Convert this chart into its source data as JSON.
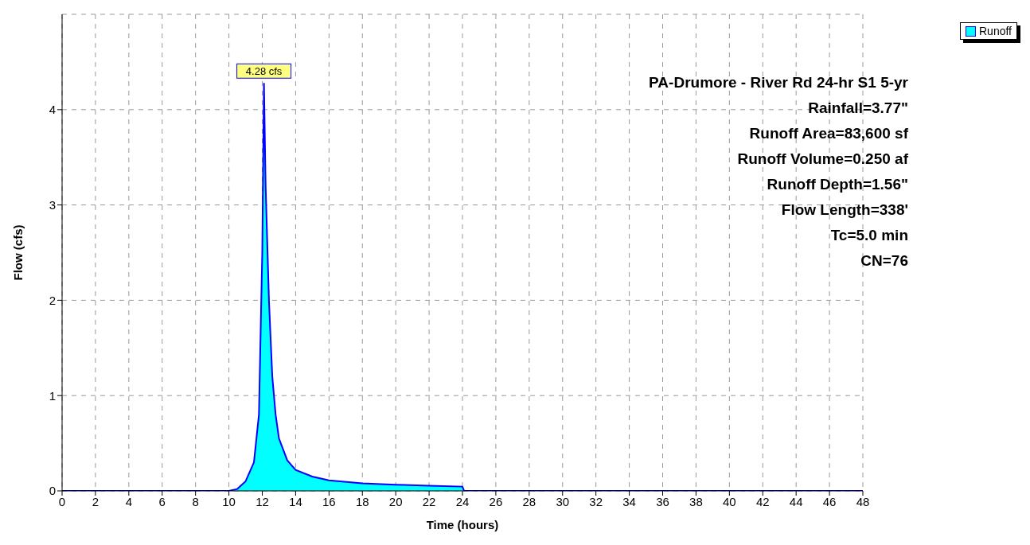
{
  "chart_data": {
    "type": "area",
    "xlabel": "Time  (hours)",
    "ylabel": "Flow  (cfs)",
    "x": [
      0,
      2,
      4,
      6,
      8,
      10,
      10.5,
      11,
      11.5,
      11.8,
      12.0,
      12.1,
      12.2,
      12.4,
      12.6,
      12.8,
      13,
      13.5,
      14,
      15,
      16,
      18,
      20,
      22,
      24,
      24.1,
      26,
      30,
      36,
      42,
      48
    ],
    "series": [
      {
        "name": "Runoff",
        "color": "#00ffff",
        "values": [
          0,
          0,
          0,
          0,
          0,
          0,
          0.02,
          0.1,
          0.3,
          0.8,
          2.5,
          4.28,
          3.2,
          2.0,
          1.2,
          0.8,
          0.55,
          0.32,
          0.22,
          0.15,
          0.11,
          0.08,
          0.065,
          0.055,
          0.045,
          0,
          0,
          0,
          0,
          0,
          0
        ]
      }
    ],
    "xlim": [
      0,
      48
    ],
    "xticks": [
      0,
      2,
      4,
      6,
      8,
      10,
      12,
      14,
      16,
      18,
      20,
      22,
      24,
      26,
      28,
      30,
      32,
      34,
      36,
      38,
      40,
      42,
      44,
      46,
      48
    ],
    "ylim": [
      0,
      5
    ],
    "yticks": [
      0,
      1,
      2,
      3,
      4
    ],
    "grid": true,
    "legend": "top right",
    "annotations": [
      {
        "text": "4.28 cfs",
        "x": 12.1,
        "y": 4.28
      },
      "PA-Drumore - River Rd 24-hr S1 5-yr",
      "Rainfall=3.77\"",
      "Runoff Area=83,600 sf",
      "Runoff Volume=0.250 af",
      "Runoff Depth=1.56\"",
      "Flow Length=338'",
      "Tc=5.0 min",
      "CN=76"
    ]
  }
}
